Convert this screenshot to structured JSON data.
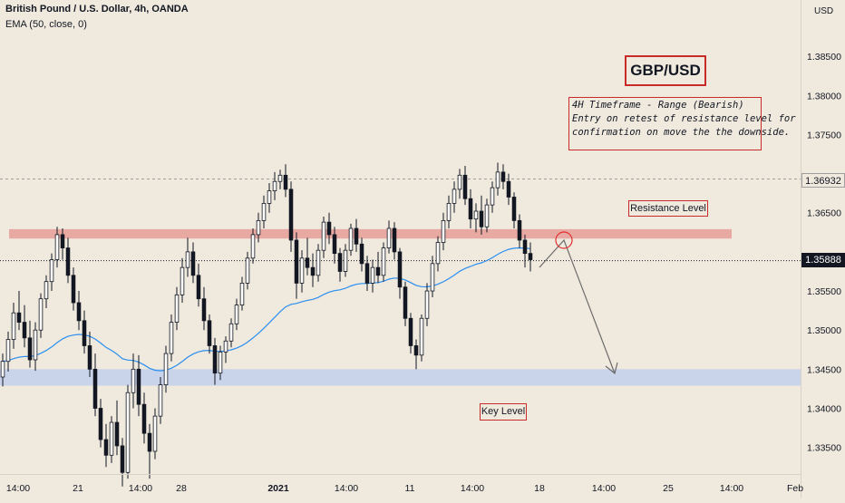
{
  "header": {
    "title": "British Pound / U.S. Dollar, 4h, OANDA",
    "indicator": "EMA (50, close, 0)"
  },
  "annotations": {
    "pair": "GBP/USD",
    "note_line1": "4H Timeframe - Range (Bearish)",
    "note_line2": "Entry on retest of resistance level for",
    "note_line3": "confirmation on move the the downside.",
    "resistance_label": "Resistance Level",
    "key_label": "Key Level"
  },
  "price_axis": {
    "currency": "USD",
    "ticks": [
      "1.38500",
      "1.38000",
      "1.37500",
      "1.36500",
      "1.35500",
      "1.35000",
      "1.34500",
      "1.34000",
      "1.33500"
    ],
    "hline_label": "1.36932",
    "last_label": "1.35888"
  },
  "time_axis": {
    "labels": [
      "14:00",
      "21",
      "14:00",
      "28",
      "2021",
      "14:00",
      "11",
      "14:00",
      "18",
      "14:00",
      "25",
      "14:00",
      "Feb"
    ]
  },
  "colors": {
    "up": "#ffffff",
    "down": "#131722",
    "ema": "#2a8ff0",
    "resistance_zone": "#e8a9a3",
    "key_zone": "#c9d3ea",
    "frame": "#c92a2a"
  },
  "chart_data": {
    "type": "candlestick",
    "ema_period": 50,
    "resistance_zone": [
      1.3617,
      1.3629
    ],
    "key_zone": [
      1.3429,
      1.345
    ],
    "last_price": 1.35888,
    "level_line": 1.36932,
    "ylim": [
      1.3316,
      1.3922
    ],
    "candles": [
      [
        1.344,
        1.347,
        1.3428,
        1.346
      ],
      [
        1.346,
        1.3498,
        1.3447,
        1.3488
      ],
      [
        1.3488,
        1.3535,
        1.3476,
        1.3522
      ],
      [
        1.3522,
        1.355,
        1.35,
        1.351
      ],
      [
        1.351,
        1.3532,
        1.3478,
        1.349
      ],
      [
        1.349,
        1.3512,
        1.3452,
        1.3462
      ],
      [
        1.3462,
        1.351,
        1.3448,
        1.35
      ],
      [
        1.35,
        1.3547,
        1.349,
        1.354
      ],
      [
        1.354,
        1.357,
        1.3528,
        1.3562
      ],
      [
        1.3562,
        1.3598,
        1.355,
        1.359
      ],
      [
        1.359,
        1.3632,
        1.358,
        1.3622
      ],
      [
        1.3622,
        1.363,
        1.359,
        1.3605
      ],
      [
        1.3605,
        1.3618,
        1.356,
        1.357
      ],
      [
        1.357,
        1.358,
        1.3525,
        1.3535
      ],
      [
        1.3535,
        1.355,
        1.35,
        1.3512
      ],
      [
        1.3512,
        1.3525,
        1.347,
        1.348
      ],
      [
        1.348,
        1.3498,
        1.344,
        1.345
      ],
      [
        1.345,
        1.347,
        1.339,
        1.34
      ],
      [
        1.34,
        1.3412,
        1.335,
        1.336
      ],
      [
        1.336,
        1.338,
        1.3325,
        1.334
      ],
      [
        1.334,
        1.339,
        1.333,
        1.3382
      ],
      [
        1.3382,
        1.341,
        1.334,
        1.3352
      ],
      [
        1.3352,
        1.3362,
        1.33,
        1.3318
      ],
      [
        1.3318,
        1.343,
        1.331,
        1.342
      ],
      [
        1.342,
        1.347,
        1.34,
        1.345
      ],
      [
        1.345,
        1.3468,
        1.339,
        1.3405
      ],
      [
        1.3405,
        1.342,
        1.3355,
        1.3368
      ],
      [
        1.3368,
        1.338,
        1.331,
        1.3345
      ],
      [
        1.3345,
        1.34,
        1.3335,
        1.339
      ],
      [
        1.339,
        1.344,
        1.338,
        1.343
      ],
      [
        1.343,
        1.348,
        1.342,
        1.347
      ],
      [
        1.347,
        1.352,
        1.346,
        1.351
      ],
      [
        1.351,
        1.3555,
        1.35,
        1.3545
      ],
      [
        1.3545,
        1.3592,
        1.3535,
        1.358
      ],
      [
        1.358,
        1.3618,
        1.3568,
        1.36
      ],
      [
        1.36,
        1.3612,
        1.356,
        1.357
      ],
      [
        1.357,
        1.3585,
        1.353,
        1.354
      ],
      [
        1.354,
        1.3555,
        1.35,
        1.3512
      ],
      [
        1.3512,
        1.352,
        1.347,
        1.348
      ],
      [
        1.348,
        1.349,
        1.343,
        1.3445
      ],
      [
        1.3445,
        1.348,
        1.3436,
        1.3472
      ],
      [
        1.3472,
        1.3492,
        1.3458,
        1.3486
      ],
      [
        1.3486,
        1.3515,
        1.3478,
        1.3508
      ],
      [
        1.3508,
        1.354,
        1.35,
        1.3532
      ],
      [
        1.3532,
        1.3568,
        1.3525,
        1.356
      ],
      [
        1.356,
        1.36,
        1.3552,
        1.3592
      ],
      [
        1.3592,
        1.363,
        1.3585,
        1.3622
      ],
      [
        1.3622,
        1.365,
        1.3612,
        1.364
      ],
      [
        1.364,
        1.3672,
        1.363,
        1.3662
      ],
      [
        1.3662,
        1.3688,
        1.365,
        1.3678
      ],
      [
        1.3678,
        1.3702,
        1.3666,
        1.369
      ],
      [
        1.369,
        1.3705,
        1.368,
        1.3698
      ],
      [
        1.3698,
        1.3712,
        1.367,
        1.368
      ],
      [
        1.368,
        1.369,
        1.36,
        1.3615
      ],
      [
        1.3615,
        1.3625,
        1.354,
        1.356
      ],
      [
        1.356,
        1.3602,
        1.3548,
        1.3592
      ],
      [
        1.3592,
        1.3618,
        1.357,
        1.358
      ],
      [
        1.358,
        1.3598,
        1.3555,
        1.357
      ],
      [
        1.357,
        1.361,
        1.3562,
        1.3602
      ],
      [
        1.3602,
        1.3645,
        1.3592,
        1.3638
      ],
      [
        1.3638,
        1.365,
        1.361,
        1.3622
      ],
      [
        1.3622,
        1.3632,
        1.3585,
        1.3598
      ],
      [
        1.3598,
        1.3605,
        1.3562,
        1.3575
      ],
      [
        1.3575,
        1.361,
        1.3568,
        1.3602
      ],
      [
        1.3602,
        1.3636,
        1.3595,
        1.363
      ],
      [
        1.363,
        1.3642,
        1.36,
        1.361
      ],
      [
        1.361,
        1.3618,
        1.3575,
        1.3585
      ],
      [
        1.3585,
        1.3595,
        1.355,
        1.356
      ],
      [
        1.356,
        1.359,
        1.3548,
        1.358
      ],
      [
        1.358,
        1.36,
        1.356,
        1.357
      ],
      [
        1.357,
        1.3612,
        1.3562,
        1.3605
      ],
      [
        1.3605,
        1.364,
        1.3598,
        1.363
      ],
      [
        1.363,
        1.3638,
        1.359,
        1.36
      ],
      [
        1.36,
        1.3605,
        1.354,
        1.3555
      ],
      [
        1.3555,
        1.3562,
        1.3505,
        1.3515
      ],
      [
        1.3515,
        1.3522,
        1.347,
        1.348
      ],
      [
        1.348,
        1.3488,
        1.345,
        1.3468
      ],
      [
        1.3468,
        1.352,
        1.346,
        1.3515
      ],
      [
        1.3515,
        1.356,
        1.3505,
        1.355
      ],
      [
        1.355,
        1.3595,
        1.3542,
        1.3585
      ],
      [
        1.3585,
        1.362,
        1.3575,
        1.3612
      ],
      [
        1.3612,
        1.365,
        1.3602,
        1.364
      ],
      [
        1.364,
        1.3672,
        1.363,
        1.3662
      ],
      [
        1.3662,
        1.369,
        1.365,
        1.368
      ],
      [
        1.368,
        1.3706,
        1.3668,
        1.3698
      ],
      [
        1.3698,
        1.371,
        1.366,
        1.3668
      ],
      [
        1.3668,
        1.368,
        1.363,
        1.3642
      ],
      [
        1.3642,
        1.3662,
        1.3625,
        1.3652
      ],
      [
        1.3652,
        1.3672,
        1.3622,
        1.3632
      ],
      [
        1.3632,
        1.3668,
        1.3625,
        1.366
      ],
      [
        1.366,
        1.369,
        1.365,
        1.3682
      ],
      [
        1.3682,
        1.3714,
        1.3672,
        1.3702
      ],
      [
        1.3702,
        1.3712,
        1.368,
        1.369
      ],
      [
        1.369,
        1.37,
        1.366,
        1.367
      ],
      [
        1.367,
        1.3676,
        1.363,
        1.364
      ],
      [
        1.364,
        1.3648,
        1.3605,
        1.3615
      ],
      [
        1.3615,
        1.3622,
        1.358,
        1.3598
      ],
      [
        1.3598,
        1.3612,
        1.3575,
        1.359
      ]
    ]
  }
}
